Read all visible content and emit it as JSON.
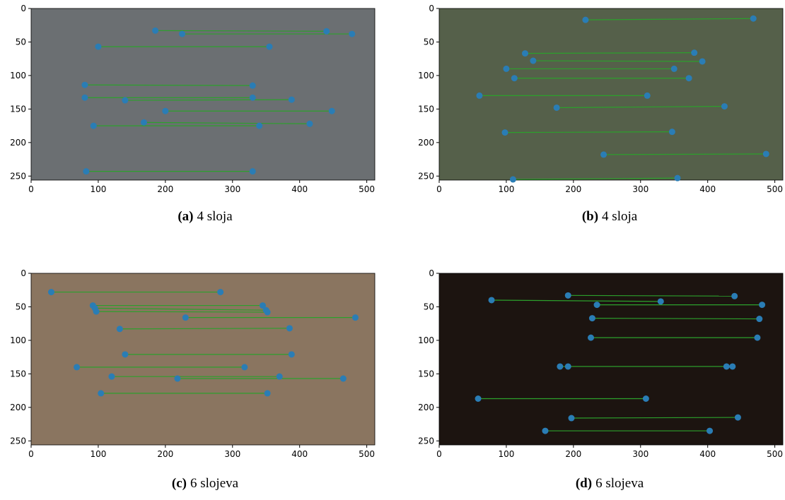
{
  "chart_data": [
    {
      "type": "scatter",
      "label": "(a)",
      "caption": "4 sloja",
      "xlim": [
        0,
        512
      ],
      "ylim": [
        0,
        256
      ],
      "y_inverted": true,
      "xticks": [
        0,
        100,
        200,
        300,
        400,
        500
      ],
      "yticks": [
        0,
        50,
        100,
        150,
        200,
        250
      ],
      "point_color": "#2a7db5",
      "line_color": "#2ca02c",
      "image_tone": "#6b6f72",
      "segments": [
        {
          "x": [
            185,
            440
          ],
          "y": [
            33,
            34
          ]
        },
        {
          "x": [
            225,
            478
          ],
          "y": [
            38,
            38
          ]
        },
        {
          "x": [
            100,
            355
          ],
          "y": [
            57,
            57
          ]
        },
        {
          "x": [
            80,
            330
          ],
          "y": [
            114,
            115
          ]
        },
        {
          "x": [
            80,
            330
          ],
          "y": [
            133,
            133
          ]
        },
        {
          "x": [
            140,
            388
          ],
          "y": [
            137,
            136
          ]
        },
        {
          "x": [
            200,
            448
          ],
          "y": [
            153,
            153
          ]
        },
        {
          "x": [
            168,
            415
          ],
          "y": [
            170,
            172
          ]
        },
        {
          "x": [
            93,
            340
          ],
          "y": [
            175,
            175
          ]
        },
        {
          "x": [
            82,
            330
          ],
          "y": [
            243,
            243
          ]
        }
      ]
    },
    {
      "type": "scatter",
      "label": "(b)",
      "caption": "4 sloja",
      "xlim": [
        0,
        512
      ],
      "ylim": [
        0,
        256
      ],
      "y_inverted": true,
      "xticks": [
        0,
        100,
        200,
        300,
        400,
        500
      ],
      "yticks": [
        0,
        50,
        100,
        150,
        200,
        250
      ],
      "point_color": "#2a7db5",
      "line_color": "#2ca02c",
      "image_tone": "#55604a",
      "segments": [
        {
          "x": [
            218,
            468
          ],
          "y": [
            17,
            15
          ]
        },
        {
          "x": [
            128,
            380
          ],
          "y": [
            67,
            66
          ]
        },
        {
          "x": [
            140,
            392
          ],
          "y": [
            78,
            79
          ]
        },
        {
          "x": [
            100,
            350
          ],
          "y": [
            90,
            90
          ]
        },
        {
          "x": [
            112,
            372
          ],
          "y": [
            104,
            104
          ]
        },
        {
          "x": [
            60,
            310
          ],
          "y": [
            130,
            130
          ]
        },
        {
          "x": [
            175,
            425
          ],
          "y": [
            148,
            146
          ]
        },
        {
          "x": [
            98,
            347
          ],
          "y": [
            185,
            184
          ]
        },
        {
          "x": [
            245,
            487
          ],
          "y": [
            218,
            217
          ]
        },
        {
          "x": [
            110,
            355
          ],
          "y": [
            255,
            253
          ]
        }
      ]
    },
    {
      "type": "scatter",
      "label": "(c)",
      "caption": "6 slojeva",
      "xlim": [
        0,
        512
      ],
      "ylim": [
        0,
        256
      ],
      "y_inverted": true,
      "xticks": [
        0,
        100,
        200,
        300,
        400,
        500
      ],
      "yticks": [
        0,
        50,
        100,
        150,
        200,
        250
      ],
      "point_color": "#2a7db5",
      "line_color": "#2ca02c",
      "image_tone": "#8a7560",
      "segments": [
        {
          "x": [
            30,
            282
          ],
          "y": [
            28,
            28
          ]
        },
        {
          "x": [
            92,
            345
          ],
          "y": [
            48,
            48
          ]
        },
        {
          "x": [
            95,
            350
          ],
          "y": [
            52,
            55
          ]
        },
        {
          "x": [
            97,
            352
          ],
          "y": [
            57,
            58
          ]
        },
        {
          "x": [
            230,
            483
          ],
          "y": [
            66,
            66
          ]
        },
        {
          "x": [
            132,
            385
          ],
          "y": [
            83,
            82
          ]
        },
        {
          "x": [
            140,
            388
          ],
          "y": [
            121,
            121
          ]
        },
        {
          "x": [
            68,
            318
          ],
          "y": [
            140,
            140
          ]
        },
        {
          "x": [
            120,
            370
          ],
          "y": [
            154,
            154
          ]
        },
        {
          "x": [
            218,
            465
          ],
          "y": [
            157,
            157
          ]
        },
        {
          "x": [
            104,
            352
          ],
          "y": [
            179,
            179
          ]
        }
      ]
    },
    {
      "type": "scatter",
      "label": "(d)",
      "caption": "6 slojeva",
      "xlim": [
        0,
        512
      ],
      "ylim": [
        0,
        256
      ],
      "y_inverted": true,
      "xticks": [
        0,
        100,
        200,
        300,
        400,
        500
      ],
      "yticks": [
        0,
        50,
        100,
        150,
        200,
        250
      ],
      "point_color": "#2a7db5",
      "line_color": "#2ca02c",
      "image_tone": "#1c1410",
      "segments": [
        {
          "x": [
            192,
            440
          ],
          "y": [
            33,
            34
          ]
        },
        {
          "x": [
            78,
            330
          ],
          "y": [
            40,
            42
          ]
        },
        {
          "x": [
            235,
            481
          ],
          "y": [
            47,
            47
          ]
        },
        {
          "x": [
            228,
            477
          ],
          "y": [
            67,
            68
          ]
        },
        {
          "x": [
            226,
            474
          ],
          "y": [
            96,
            96
          ]
        },
        {
          "x": [
            180,
            437
          ],
          "y": [
            139,
            139
          ]
        },
        {
          "x": [
            192,
            428
          ],
          "y": [
            139,
            139
          ]
        },
        {
          "x": [
            58,
            308
          ],
          "y": [
            187,
            187
          ]
        },
        {
          "x": [
            197,
            445
          ],
          "y": [
            216,
            215
          ]
        },
        {
          "x": [
            158,
            403
          ],
          "y": [
            235,
            235
          ]
        }
      ]
    }
  ]
}
